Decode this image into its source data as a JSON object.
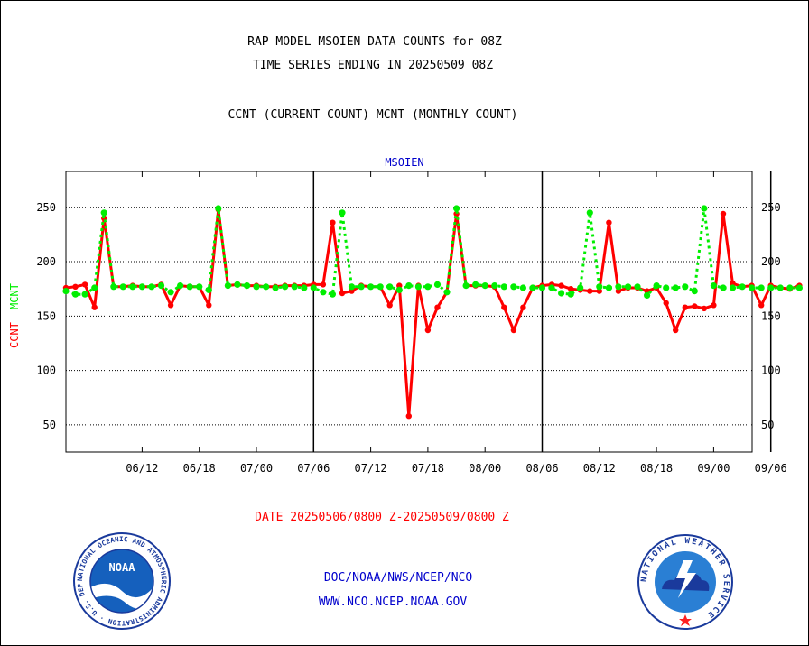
{
  "header": {
    "title1": "RAP MODEL MSOIEN DATA COUNTS for 08Z",
    "title2": "TIME SERIES ENDING IN 20250509 08Z",
    "subtitle": "CCNT (CURRENT COUNT) MCNT (MONTHLY COUNT)"
  },
  "footer": {
    "date_range": "DATE 20250506/0800 Z-20250509/0800 Z",
    "org_path": "DOC/NOAA/NWS/NCEP/NCO",
    "website": "WWW.NCO.NCEP.NOAA.GOV"
  },
  "logos": {
    "noaa_word": "NOAA",
    "noaa_ring": "NATIONAL OCEANIC AND ATMOSPHERIC ADMINISTRATION · U.S. DEPARTMENT OF COMMERCE ·",
    "nws_ring": "NATIONAL WEATHER SERVICE"
  },
  "colors": {
    "ccnt": "#ff0000",
    "mcnt": "#00ee00",
    "title": "#000000",
    "station_label": "#0000cc",
    "date_text": "#ff0000",
    "footer_text": "#0000cc"
  },
  "chart_data": {
    "type": "line",
    "station": "MSOIEN",
    "ylabel_ccnt": "CCNT",
    "ylabel_mcnt": "MCNT",
    "ylim": [
      25,
      283
    ],
    "yticks": [
      50,
      100,
      150,
      200,
      250
    ],
    "grid": true,
    "x_tick_labels": [
      "06/12",
      "06/18",
      "07/00",
      "07/06",
      "07/12",
      "07/18",
      "08/00",
      "08/06",
      "08/12",
      "08/18",
      "09/00",
      "09/06"
    ],
    "x_tick_index": [
      8,
      14,
      20,
      26,
      32,
      38,
      44,
      50,
      56,
      62,
      68,
      74
    ],
    "day_separators": [
      26,
      50,
      74
    ],
    "series": [
      {
        "name": "CCNT",
        "values": [
          176,
          177,
          179,
          158,
          240,
          177,
          177,
          178,
          177,
          177,
          179,
          160,
          178,
          177,
          177,
          160,
          248,
          178,
          179,
          178,
          178,
          177,
          177,
          178,
          178,
          178,
          179,
          179,
          236,
          171,
          173,
          178,
          177,
          177,
          160,
          178,
          58,
          178,
          137,
          158,
          172,
          244,
          178,
          178,
          178,
          177,
          158,
          137,
          158,
          176,
          178,
          179,
          178,
          175,
          174,
          173,
          173,
          236,
          173,
          176,
          176,
          173,
          176,
          162,
          137,
          158,
          159,
          157,
          160,
          244,
          180,
          177,
          178,
          160,
          178,
          176,
          175,
          178
        ]
      },
      {
        "name": "MCNT",
        "values": [
          173,
          170,
          170,
          176,
          245,
          177,
          177,
          177,
          177,
          177,
          178,
          172,
          178,
          177,
          177,
          174,
          249,
          178,
          179,
          178,
          177,
          177,
          176,
          177,
          177,
          176,
          176,
          172,
          170,
          245,
          177,
          177,
          177,
          177,
          177,
          174,
          178,
          177,
          177,
          179,
          172,
          249,
          178,
          179,
          178,
          178,
          177,
          177,
          176,
          176,
          176,
          176,
          171,
          170,
          176,
          245,
          177,
          176,
          177,
          177,
          177,
          169,
          178,
          176,
          176,
          177,
          173,
          249,
          178,
          176,
          176,
          177,
          176,
          176,
          176,
          176,
          176,
          176
        ]
      }
    ]
  }
}
